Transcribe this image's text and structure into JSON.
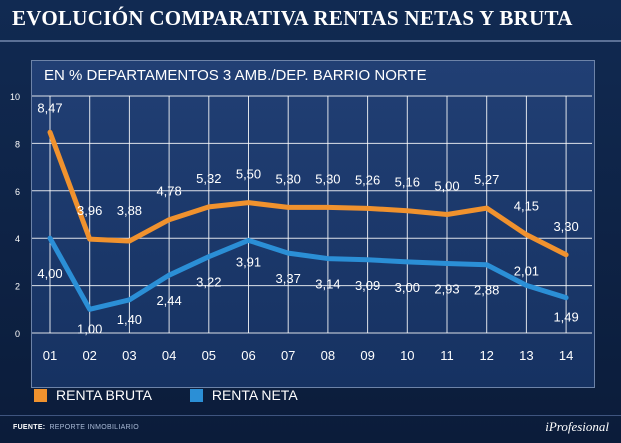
{
  "header": {
    "title": "EVOLUCIÓN COMPARATIVA RENTAS NETAS Y BRUTA"
  },
  "chart_data": {
    "type": "line",
    "title": "EVOLUCIÓN COMPARATIVA RENTAS NETAS Y BRUTA",
    "subtitle": "EN % DEPARTAMENTOS 3 AMB./DEP. BARRIO NORTE",
    "categories": [
      "01",
      "02",
      "03",
      "04",
      "05",
      "06",
      "07",
      "08",
      "09",
      "10",
      "11",
      "12",
      "13",
      "14"
    ],
    "y_ticks": [
      "10",
      "8",
      "6",
      "4",
      "2",
      "0"
    ],
    "ylim": [
      0,
      10
    ],
    "grid": true,
    "legend_position": "bottom-left",
    "series": [
      {
        "name": "RENTA BRUTA",
        "color": "#f0922e",
        "values": [
          8.47,
          3.96,
          3.88,
          4.78,
          5.32,
          5.5,
          5.3,
          5.3,
          5.26,
          5.16,
          5.0,
          5.27,
          4.15,
          3.3
        ],
        "labels": [
          "8,47",
          "3,96",
          "3,88",
          "4,78",
          "5,32",
          "5,50",
          "5,30",
          "5,30",
          "5,26",
          "5,16",
          "5,00",
          "5,27",
          "4,15",
          "3,30"
        ]
      },
      {
        "name": "RENTA NETA",
        "color": "#2b8fd6",
        "values": [
          4.0,
          1.0,
          1.4,
          2.44,
          3.22,
          3.91,
          3.37,
          3.14,
          3.09,
          3.0,
          2.93,
          2.88,
          2.01,
          1.49
        ],
        "labels": [
          "4,00",
          "1,00",
          "1,40",
          "2,44",
          "3,22",
          "3,91",
          "3,37",
          "3,14",
          "3,09",
          "3,00",
          "2,93",
          "2,88",
          "2,01",
          "1,49"
        ]
      }
    ]
  },
  "legend": {
    "bruta_label": "RENTA BRUTA",
    "neta_label": "RENTA NETA"
  },
  "footer": {
    "source_label": "FUENTE:",
    "source_text": "REPORTE INMOBILIARIO",
    "logo_text": "iProfesional"
  },
  "colors": {
    "background": "#0c1f3f",
    "panel": "#1b3a6c",
    "grid": "#ffffff",
    "bruta": "#f0922e",
    "neta": "#2b8fd6"
  }
}
